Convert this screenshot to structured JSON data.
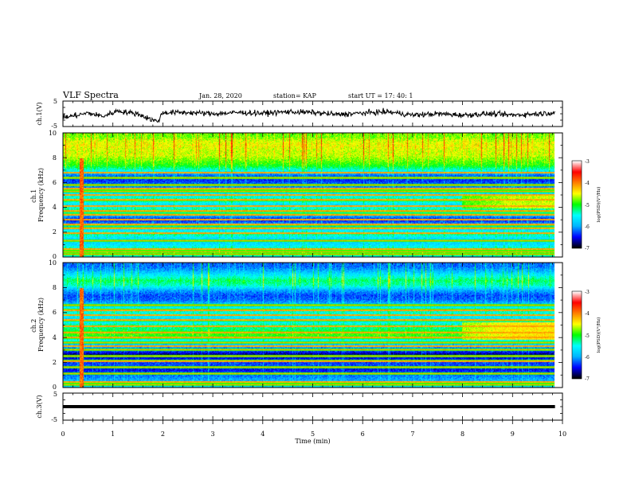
{
  "header": {
    "title": "VLF Spectra",
    "date": "Jan. 28, 2020",
    "station": "station= KAP",
    "start": "start UT =  17: 40: 1"
  },
  "chart_data": [
    {
      "type": "line",
      "name": "ch1-waveform",
      "ylabel": "ch.1(V)",
      "ylim": [
        -5,
        5
      ],
      "yticks": [
        "5",
        "-5"
      ],
      "xlim": [
        0,
        10
      ],
      "x_end": 9.85,
      "trend": [
        [
          0.0,
          -1.5
        ],
        [
          0.3,
          -0.5
        ],
        [
          0.5,
          0.3
        ],
        [
          0.8,
          -1.0
        ],
        [
          1.1,
          1.2
        ],
        [
          1.3,
          0.5
        ],
        [
          1.5,
          0.0
        ],
        [
          1.8,
          -2.5
        ],
        [
          1.9,
          -3.0
        ],
        [
          2.0,
          0.5
        ],
        [
          2.5,
          0.5
        ],
        [
          3.0,
          0.0
        ],
        [
          3.5,
          0.5
        ],
        [
          4.0,
          0.2
        ],
        [
          4.5,
          0.8
        ],
        [
          5.0,
          0.5
        ],
        [
          5.5,
          -0.3
        ],
        [
          6.0,
          0.3
        ],
        [
          6.5,
          0.8
        ],
        [
          7.0,
          -0.5
        ],
        [
          7.5,
          0.0
        ],
        [
          8.0,
          -0.5
        ],
        [
          8.5,
          0.0
        ],
        [
          9.0,
          -0.5
        ],
        [
          9.5,
          0.0
        ],
        [
          9.85,
          0.5
        ]
      ]
    },
    {
      "type": "heatmap",
      "name": "ch1-spectrogram",
      "ylabel": "ch.1\nFrequency (kHz)",
      "ylim": [
        0,
        10
      ],
      "yticks": [
        "0",
        "2",
        "4",
        "6",
        "8",
        "10"
      ],
      "xlim": [
        0,
        10
      ],
      "x_end": 9.85,
      "colorbar": {
        "label": "log(PSD)(V²/Hz)",
        "range": [
          -7,
          -3
        ],
        "ticks": [
          "-3",
          "-4",
          "-5",
          "-6",
          "-7"
        ],
        "colors": [
          "#000000",
          "#0000ff",
          "#00b4ff",
          "#00ffff",
          "#00ff00",
          "#ffff00",
          "#ff8000",
          "#ff0000",
          "#ffffff"
        ]
      },
      "background_profile": [
        [
          0.0,
          -5.6
        ],
        [
          0.3,
          -5.0
        ],
        [
          0.6,
          -5.3
        ],
        [
          1.0,
          -5.7
        ],
        [
          1.4,
          -5.8
        ],
        [
          1.8,
          -5.3
        ],
        [
          2.2,
          -5.7
        ],
        [
          2.6,
          -6.0
        ],
        [
          3.0,
          -6.5
        ],
        [
          3.4,
          -5.8
        ],
        [
          3.8,
          -5.3
        ],
        [
          4.2,
          -5.7
        ],
        [
          4.6,
          -5.3
        ],
        [
          5.0,
          -5.6
        ],
        [
          5.4,
          -6.0
        ],
        [
          5.8,
          -6.2
        ],
        [
          6.2,
          -6.4
        ],
        [
          6.6,
          -6.2
        ],
        [
          7.0,
          -5.5
        ],
        [
          7.4,
          -5.0
        ],
        [
          7.8,
          -4.8
        ],
        [
          8.2,
          -4.6
        ],
        [
          8.6,
          -4.6
        ],
        [
          9.0,
          -4.5
        ],
        [
          9.4,
          -4.6
        ],
        [
          9.7,
          -4.8
        ],
        [
          10.0,
          -4.8
        ]
      ],
      "lines_khz": [
        0.2,
        0.4,
        0.6,
        1.3,
        1.9,
        2.3,
        2.6,
        3.0,
        3.4,
        3.7,
        4.1,
        4.6,
        5.0,
        5.3,
        5.5,
        5.8,
        6.4,
        6.8
      ],
      "burst_min": 0.37,
      "region": {
        "t": [
          8.0,
          9.85
        ],
        "f": [
          3.9,
          5.0
        ],
        "level": -4.6
      }
    },
    {
      "type": "heatmap",
      "name": "ch2-spectrogram",
      "ylabel": "ch.2\nFrequency (kHz)",
      "ylim": [
        0,
        10
      ],
      "yticks": [
        "0",
        "2",
        "4",
        "6",
        "8",
        "10"
      ],
      "xlim": [
        0,
        10
      ],
      "x_end": 9.85,
      "colorbar": {
        "label": "log(PSD)(V²/Hz)",
        "range": [
          -7,
          -3
        ],
        "ticks": [
          "-3",
          "-4",
          "-5",
          "-6",
          "-7"
        ],
        "colors": [
          "#000000",
          "#0000ff",
          "#00b4ff",
          "#00ffff",
          "#00ff00",
          "#ffff00",
          "#ff8000",
          "#ff0000",
          "#ffffff"
        ]
      },
      "background_profile": [
        [
          0.0,
          -5.8
        ],
        [
          0.3,
          -5.8
        ],
        [
          0.6,
          -6.0
        ],
        [
          1.0,
          -6.2
        ],
        [
          1.4,
          -6.5
        ],
        [
          1.8,
          -6.3
        ],
        [
          2.2,
          -6.4
        ],
        [
          2.6,
          -6.8
        ],
        [
          3.0,
          -6.2
        ],
        [
          3.4,
          -5.9
        ],
        [
          3.8,
          -5.5
        ],
        [
          4.2,
          -4.9
        ],
        [
          4.6,
          -5.2
        ],
        [
          5.0,
          -5.3
        ],
        [
          5.4,
          -5.8
        ],
        [
          5.8,
          -5.5
        ],
        [
          6.2,
          -5.4
        ],
        [
          6.6,
          -5.8
        ],
        [
          7.0,
          -6.2
        ],
        [
          7.4,
          -6.3
        ],
        [
          7.8,
          -6.0
        ],
        [
          8.2,
          -5.4
        ],
        [
          8.6,
          -5.2
        ],
        [
          9.0,
          -5.6
        ],
        [
          9.4,
          -6.0
        ],
        [
          9.7,
          -6.2
        ],
        [
          10.0,
          -6.2
        ]
      ],
      "lines_khz": [
        0.2,
        0.4,
        1.1,
        1.6,
        2.1,
        2.5,
        3.0,
        3.3,
        3.6,
        4.0,
        4.4,
        4.9,
        5.4,
        5.8,
        6.2,
        6.6
      ],
      "burst_min": 0.37,
      "region": {
        "t": [
          8.0,
          9.85
        ],
        "f": [
          3.8,
          5.2
        ],
        "level": -4.4
      }
    },
    {
      "type": "line",
      "name": "ch3-waveform",
      "ylabel": "ch.3(V)",
      "ylim": [
        -5,
        5
      ],
      "yticks": [
        "5",
        "-5"
      ],
      "xlim": [
        0,
        10
      ],
      "x_end": 9.85,
      "trend": [
        [
          0.0,
          0.0
        ],
        [
          9.85,
          0.0
        ]
      ]
    }
  ],
  "xaxis": {
    "label": "Time (min)",
    "ticks": [
      "0",
      "1",
      "2",
      "3",
      "4",
      "5",
      "6",
      "7",
      "8",
      "9",
      "10"
    ]
  }
}
